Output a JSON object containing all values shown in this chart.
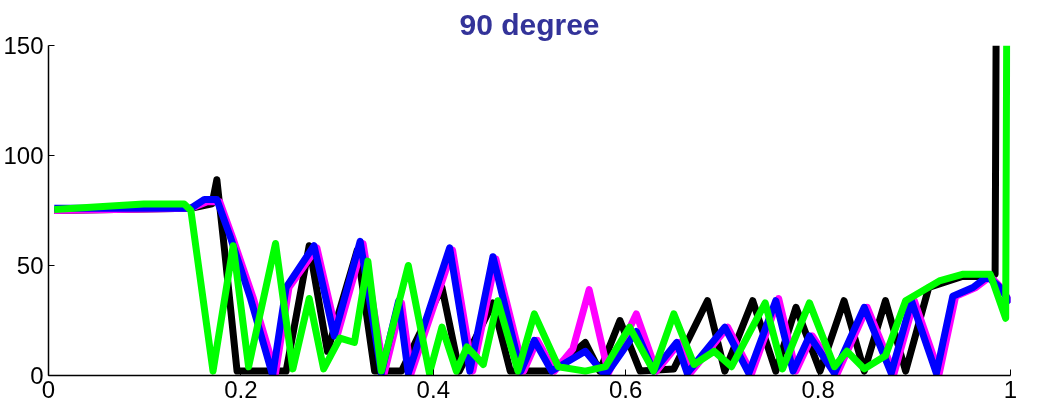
{
  "chart_data": {
    "type": "line",
    "title": "90 degree",
    "xlim": [
      0,
      1
    ],
    "ylim": [
      0,
      150
    ],
    "xticks": [
      0,
      0.2,
      0.4,
      0.6,
      0.8,
      1
    ],
    "yticks": [
      0,
      50,
      100,
      150
    ],
    "grid": false,
    "marker": "none",
    "line_style": "solid",
    "series": [
      {
        "color": "#000000",
        "x": [
          0.006,
          0.148,
          0.17,
          0.175,
          0.183,
          0.196,
          0.247,
          0.271,
          0.29,
          0.321,
          0.339,
          0.367,
          0.409,
          0.427,
          0.462,
          0.48,
          0.523,
          0.558,
          0.573,
          0.594,
          0.615,
          0.65,
          0.685,
          0.703,
          0.732,
          0.756,
          0.777,
          0.802,
          0.827,
          0.848,
          0.87,
          0.891,
          0.915,
          0.95,
          0.979,
          0.984,
          0.985
        ],
        "values": [
          75,
          76,
          78,
          89,
          57,
          2,
          2,
          59,
          11,
          57,
          2,
          2,
          40,
          2,
          33,
          2,
          2,
          15,
          2,
          25,
          2,
          3,
          34,
          2,
          34,
          2,
          31,
          2,
          34,
          2,
          34,
          2,
          40,
          45,
          45,
          46,
          150
        ]
      },
      {
        "color": "#ff00ff",
        "x": [
          0.006,
          0.148,
          0.165,
          0.178,
          0.192,
          0.213,
          0.236,
          0.25,
          0.279,
          0.3,
          0.327,
          0.349,
          0.367,
          0.377,
          0.42,
          0.441,
          0.465,
          0.494,
          0.508,
          0.526,
          0.545,
          0.562,
          0.582,
          0.611,
          0.632,
          0.656,
          0.667,
          0.706,
          0.731,
          0.759,
          0.777,
          0.794,
          0.82,
          0.851,
          0.879,
          0.9,
          0.926,
          0.943,
          0.964,
          0.979,
          0.99,
          1.0
        ],
        "values": [
          75,
          76,
          79,
          79,
          62,
          35,
          1,
          40,
          58,
          18,
          60,
          1,
          33,
          1,
          57,
          2,
          53,
          2,
          16,
          2,
          12,
          39,
          1,
          28,
          2,
          15,
          1,
          22,
          1,
          35,
          2,
          18,
          1,
          31,
          1,
          34,
          1,
          36,
          40,
          45,
          40,
          33
        ]
      },
      {
        "color": "#0000ff",
        "x": [
          0.006,
          0.148,
          0.162,
          0.175,
          0.189,
          0.21,
          0.233,
          0.247,
          0.276,
          0.297,
          0.324,
          0.346,
          0.364,
          0.374,
          0.417,
          0.438,
          0.462,
          0.491,
          0.505,
          0.523,
          0.558,
          0.579,
          0.611,
          0.629,
          0.653,
          0.664,
          0.703,
          0.728,
          0.756,
          0.774,
          0.791,
          0.817,
          0.848,
          0.876,
          0.897,
          0.923,
          0.94,
          0.961,
          0.976,
          0.989,
          1.0
        ],
        "values": [
          76,
          76,
          80,
          80,
          63,
          35,
          0,
          40,
          59,
          18,
          61,
          1,
          34,
          1,
          58,
          2,
          54,
          2,
          16,
          2,
          11,
          0,
          20,
          2,
          15,
          1,
          22,
          1,
          34,
          2,
          18,
          1,
          31,
          1,
          34,
          1,
          36,
          40,
          45,
          40,
          33
        ]
      },
      {
        "color": "#00ff00",
        "x": [
          0.006,
          0.099,
          0.141,
          0.148,
          0.171,
          0.192,
          0.208,
          0.236,
          0.254,
          0.271,
          0.286,
          0.303,
          0.318,
          0.332,
          0.346,
          0.374,
          0.396,
          0.409,
          0.424,
          0.435,
          0.452,
          0.467,
          0.488,
          0.505,
          0.53,
          0.558,
          0.579,
          0.604,
          0.629,
          0.65,
          0.671,
          0.692,
          0.71,
          0.745,
          0.763,
          0.791,
          0.817,
          0.83,
          0.848,
          0.87,
          0.891,
          0.926,
          0.95,
          0.979,
          0.995,
          0.996
        ],
        "values": [
          75.5,
          78,
          78,
          75,
          2,
          59,
          4,
          60,
          3,
          35,
          3,
          17,
          15,
          52,
          2,
          50,
          1,
          22,
          2,
          13,
          5,
          34,
          2,
          28,
          4,
          2,
          4,
          22,
          2,
          28,
          5,
          11,
          4,
          33,
          3,
          33,
          4,
          11,
          3,
          9,
          34,
          43,
          46,
          46,
          26,
          150
        ]
      }
    ]
  }
}
